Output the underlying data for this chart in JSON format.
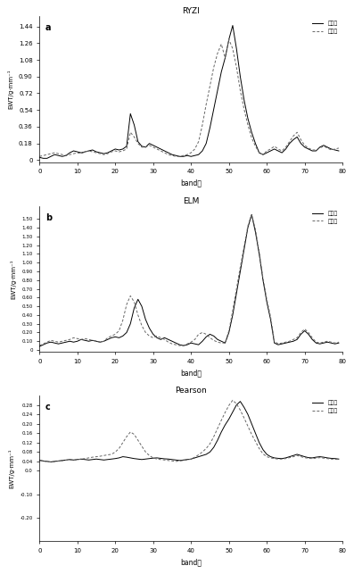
{
  "title_top": "RYZI",
  "subplot_a": {
    "label": "a",
    "title": "RYZI",
    "ylabel": "EWT/g·mm⁻¹",
    "xlabel": "band号",
    "xlim": [
      0,
      80
    ],
    "ylim": [
      -0.02,
      1.55
    ],
    "yticks": [
      0.0,
      0.18,
      0.36,
      0.54,
      0.72,
      0.9,
      1.08,
      1.26,
      1.44
    ],
    "ytick_labels": [
      "0",
      "0.18",
      "0.36",
      "0.54",
      "0.72",
      "0.90",
      "1.08",
      "1.26",
      "1.44"
    ],
    "xticks": [
      0,
      10,
      20,
      30,
      40,
      50,
      60,
      70,
      80
    ],
    "legend1": "实测値",
    "legend2": "预测値"
  },
  "subplot_b": {
    "label": "b",
    "title": "ELM",
    "ylabel": "EWT/g·mm⁻¹",
    "xlabel": "band号",
    "xlim": [
      0,
      80
    ],
    "ylim": [
      -0.02,
      1.65
    ],
    "yticks": [
      0.0,
      0.1,
      0.2,
      0.3,
      0.4,
      0.5,
      0.6,
      0.7,
      0.8,
      0.9,
      1.0,
      1.1,
      1.2,
      1.3,
      1.4,
      1.5
    ],
    "ytick_labels": [
      "0",
      "0.10",
      "0.20",
      "0.30",
      "0.40",
      "0.50",
      "0.60",
      "0.70",
      "0.80",
      "0.90",
      "1.00",
      "1.10",
      "1.20",
      "1.30",
      "1.40",
      "1.50"
    ],
    "xticks": [
      0,
      10,
      20,
      30,
      40,
      50,
      60,
      70,
      80
    ],
    "legend1": "实测値",
    "legend2": "预测値"
  },
  "subplot_c": {
    "label": "c",
    "title": "Pearson",
    "ylabel": "EWT/g·mm⁻¹",
    "xlabel": "band号",
    "xlim": [
      0,
      80
    ],
    "ylim": [
      -0.3,
      0.32
    ],
    "yticks": [
      -0.2,
      -0.1,
      0.0,
      0.04,
      0.08,
      0.12,
      0.16,
      0.2,
      0.24,
      0.28
    ],
    "ytick_labels": [
      "-0.20",
      "-0.10",
      "0.0",
      "0.04",
      "0.08",
      "0.12",
      "0.16",
      "0.20",
      "0.24",
      "0.28"
    ],
    "xticks": [
      0,
      10,
      20,
      30,
      40,
      50,
      60,
      70,
      80
    ],
    "legend1": "实测値",
    "legend2": "预测値"
  },
  "line_color_solid": "#000000",
  "line_color_dot": "#666666",
  "bg_color": "#ffffff"
}
